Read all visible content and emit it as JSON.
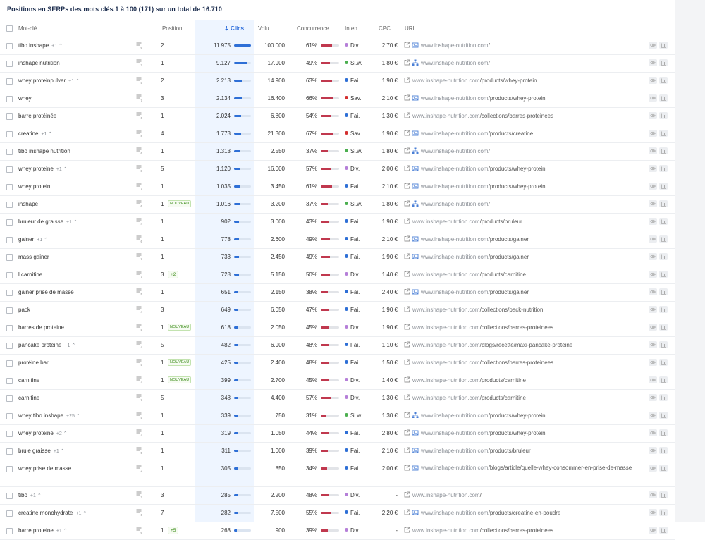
{
  "title": "Positions en SERPs des mots clés 1 à 100 (171) sur un total de 16.710",
  "columns": {
    "keyword": "Mot-clé",
    "position": "Position",
    "clicks": "Clics",
    "volume": "Volu...",
    "competition": "Concurrence",
    "intent": "Inten...",
    "cpc": "CPC",
    "url": "URL"
  },
  "colors": {
    "accent": "#2e6fd6",
    "competition_bar": "#c0384e",
    "new_tag": "#3c8d1a",
    "intent_div": "#b57fd8",
    "intent_fai": "#2e6fd6",
    "intent_siw": "#4caf50",
    "intent_sav": "#d32f2f"
  },
  "rows": [
    {
      "keyword": "tibo inshape",
      "delta": "+1",
      "position": "2",
      "tag": "",
      "clicks": "11.975",
      "clicks_pct": 1.0,
      "volume": "100.000",
      "competition": "61%",
      "comp_pct": 0.61,
      "intent": "Div.",
      "intent_color": "#b57fd8",
      "cpc": "2,70 €",
      "url_icon": "image-icon",
      "url_domain": "www.inshape-nutrition.com",
      "url_path": "/",
      "serp_num": "6"
    },
    {
      "keyword": "inshape nutrition",
      "delta": "",
      "position": "1",
      "tag": "",
      "clicks": "9.127",
      "clicks_pct": 0.76,
      "volume": "17.900",
      "competition": "49%",
      "comp_pct": 0.49,
      "intent": "Si.w.",
      "intent_color": "#4caf50",
      "cpc": "1,80 €",
      "url_icon": "sitelinks-icon",
      "url_domain": "www.inshape-nutrition.com",
      "url_path": "/",
      "serp_num": "7"
    },
    {
      "keyword": "whey proteinpulver",
      "delta": "+1",
      "position": "2",
      "tag": "",
      "clicks": "2.213",
      "clicks_pct": 0.45,
      "volume": "14.900",
      "competition": "63%",
      "comp_pct": 0.63,
      "intent": "Fai.",
      "intent_color": "#2e6fd6",
      "cpc": "1,90 €",
      "url_icon": "",
      "url_domain": "www.inshape-nutrition.com",
      "url_path": "/products/whey-protein",
      "serp_num": "5"
    },
    {
      "keyword": "whey",
      "delta": "",
      "position": "3",
      "tag": "",
      "clicks": "2.134",
      "clicks_pct": 0.44,
      "volume": "16.400",
      "competition": "66%",
      "comp_pct": 0.66,
      "intent": "Sav.",
      "intent_color": "#d32f2f",
      "cpc": "2,10 €",
      "url_icon": "image-icon",
      "url_domain": "www.inshape-nutrition.com",
      "url_path": "/products/whey-protein",
      "serp_num": "7"
    },
    {
      "keyword": "barre protéinée",
      "delta": "",
      "position": "1",
      "tag": "",
      "clicks": "2.024",
      "clicks_pct": 0.43,
      "volume": "6.800",
      "competition": "54%",
      "comp_pct": 0.54,
      "intent": "Fai.",
      "intent_color": "#2e6fd6",
      "cpc": "1,30 €",
      "url_icon": "",
      "url_domain": "www.inshape-nutrition.com",
      "url_path": "/collections/barres-proteinees",
      "serp_num": "6"
    },
    {
      "keyword": "creatine",
      "delta": "+1",
      "position": "4",
      "tag": "",
      "clicks": "1.773",
      "clicks_pct": 0.4,
      "volume": "21.300",
      "competition": "67%",
      "comp_pct": 0.67,
      "intent": "Sav.",
      "intent_color": "#d32f2f",
      "cpc": "1,90 €",
      "url_icon": "image-icon",
      "url_domain": "www.inshape-nutrition.com",
      "url_path": "/products/creatine",
      "serp_num": "8"
    },
    {
      "keyword": "tibo inshape nutrition",
      "delta": "",
      "position": "1",
      "tag": "",
      "clicks": "1.313",
      "clicks_pct": 0.36,
      "volume": "2.550",
      "competition": "37%",
      "comp_pct": 0.37,
      "intent": "Si.w.",
      "intent_color": "#4caf50",
      "cpc": "1,80 €",
      "url_icon": "sitelinks-icon",
      "url_domain": "www.inshape-nutrition.com",
      "url_path": "/",
      "serp_num": "6"
    },
    {
      "keyword": "whey proteine",
      "delta": "+1",
      "position": "5",
      "tag": "",
      "clicks": "1.120",
      "clicks_pct": 0.34,
      "volume": "16.000",
      "competition": "57%",
      "comp_pct": 0.57,
      "intent": "Div.",
      "intent_color": "#b57fd8",
      "cpc": "2,00 €",
      "url_icon": "image-icon",
      "url_domain": "www.inshape-nutrition.com",
      "url_path": "/products/whey-protein",
      "serp_num": "8"
    },
    {
      "keyword": "whey protein",
      "delta": "",
      "position": "1",
      "tag": "",
      "clicks": "1.035",
      "clicks_pct": 0.33,
      "volume": "3.450",
      "competition": "61%",
      "comp_pct": 0.61,
      "intent": "Fai.",
      "intent_color": "#2e6fd6",
      "cpc": "2,10 €",
      "url_icon": "image-icon",
      "url_domain": "www.inshape-nutrition.com",
      "url_path": "/products/whey-protein",
      "serp_num": "7"
    },
    {
      "keyword": "inshape",
      "delta": "",
      "position": "1",
      "tag": "NOUVEAU",
      "clicks": "1.016",
      "clicks_pct": 0.33,
      "volume": "3.200",
      "competition": "37%",
      "comp_pct": 0.37,
      "intent": "Si.w.",
      "intent_color": "#4caf50",
      "cpc": "1,80 €",
      "url_icon": "sitelinks-icon",
      "url_domain": "www.inshape-nutrition.com",
      "url_path": "/",
      "serp_num": "6"
    },
    {
      "keyword": "bruleur de graisse",
      "delta": "+1",
      "position": "1",
      "tag": "",
      "clicks": "902",
      "clicks_pct": 0.31,
      "volume": "3.000",
      "competition": "43%",
      "comp_pct": 0.43,
      "intent": "Fai.",
      "intent_color": "#2e6fd6",
      "cpc": "1,90 €",
      "url_icon": "",
      "url_domain": "www.inshape-nutrition.com",
      "url_path": "/products/bruleur",
      "serp_num": "4"
    },
    {
      "keyword": "gainer",
      "delta": "+1",
      "position": "1",
      "tag": "",
      "clicks": "778",
      "clicks_pct": 0.29,
      "volume": "2.600",
      "competition": "49%",
      "comp_pct": 0.49,
      "intent": "Fai.",
      "intent_color": "#2e6fd6",
      "cpc": "2,10 €",
      "url_icon": "image-icon",
      "url_domain": "www.inshape-nutrition.com",
      "url_path": "/products/gainer",
      "serp_num": "6"
    },
    {
      "keyword": "mass gainer",
      "delta": "",
      "position": "1",
      "tag": "",
      "clicks": "733",
      "clicks_pct": 0.28,
      "volume": "2.450",
      "competition": "49%",
      "comp_pct": 0.49,
      "intent": "Fai.",
      "intent_color": "#2e6fd6",
      "cpc": "1,90 €",
      "url_icon": "image-icon",
      "url_domain": "www.inshape-nutrition.com",
      "url_path": "/products/gainer",
      "serp_num": "7"
    },
    {
      "keyword": "l carnitine",
      "delta": "",
      "position": "3",
      "tag": "+2",
      "clicks": "728",
      "clicks_pct": 0.28,
      "volume": "5.150",
      "competition": "50%",
      "comp_pct": 0.5,
      "intent": "Div.",
      "intent_color": "#b57fd8",
      "cpc": "1,40 €",
      "url_icon": "",
      "url_domain": "www.inshape-nutrition.com",
      "url_path": "/products/carnitine",
      "serp_num": "7"
    },
    {
      "keyword": "gainer prise de masse",
      "delta": "",
      "position": "1",
      "tag": "",
      "clicks": "651",
      "clicks_pct": 0.27,
      "volume": "2.150",
      "competition": "38%",
      "comp_pct": 0.38,
      "intent": "Fai.",
      "intent_color": "#2e6fd6",
      "cpc": "2,40 €",
      "url_icon": "image-icon",
      "url_domain": "www.inshape-nutrition.com",
      "url_path": "/products/gainer",
      "serp_num": "5"
    },
    {
      "keyword": "pack",
      "delta": "",
      "position": "3",
      "tag": "",
      "clicks": "649",
      "clicks_pct": 0.27,
      "volume": "6.050",
      "competition": "47%",
      "comp_pct": 0.47,
      "intent": "Fai.",
      "intent_color": "#2e6fd6",
      "cpc": "1,90 €",
      "url_icon": "",
      "url_domain": "www.inshape-nutrition.com",
      "url_path": "/collections/pack-nutrition",
      "serp_num": "4"
    },
    {
      "keyword": "barres de proteine",
      "delta": "",
      "position": "1",
      "tag": "NOUVEAU",
      "clicks": "618",
      "clicks_pct": 0.26,
      "volume": "2.050",
      "competition": "45%",
      "comp_pct": 0.45,
      "intent": "Div.",
      "intent_color": "#b57fd8",
      "cpc": "1,90 €",
      "url_icon": "",
      "url_domain": "www.inshape-nutrition.com",
      "url_path": "/collections/barres-proteinees",
      "serp_num": "5"
    },
    {
      "keyword": "pancake proteine",
      "delta": "+1",
      "position": "5",
      "tag": "",
      "clicks": "482",
      "clicks_pct": 0.24,
      "volume": "6.900",
      "competition": "48%",
      "comp_pct": 0.48,
      "intent": "Fai.",
      "intent_color": "#2e6fd6",
      "cpc": "1,10 €",
      "url_icon": "",
      "url_domain": "www.inshape-nutrition.com",
      "url_path": "/blogs/recette/maxi-pancake-proteine",
      "serp_num": "4"
    },
    {
      "keyword": "protéine bar",
      "delta": "",
      "position": "1",
      "tag": "NOUVEAU",
      "clicks": "425",
      "clicks_pct": 0.23,
      "volume": "2.400",
      "competition": "48%",
      "comp_pct": 0.48,
      "intent": "Fai.",
      "intent_color": "#2e6fd6",
      "cpc": "1,50 €",
      "url_icon": "",
      "url_domain": "www.inshape-nutrition.com",
      "url_path": "/collections/barres-proteinees",
      "serp_num": "5"
    },
    {
      "keyword": "carnitine l",
      "delta": "",
      "position": "1",
      "tag": "NOUVEAU",
      "clicks": "399",
      "clicks_pct": 0.22,
      "volume": "2.700",
      "competition": "45%",
      "comp_pct": 0.45,
      "intent": "Div.",
      "intent_color": "#b57fd8",
      "cpc": "1,40 €",
      "url_icon": "",
      "url_domain": "www.inshape-nutrition.com",
      "url_path": "/products/carnitine",
      "serp_num": "4"
    },
    {
      "keyword": "carnitine",
      "delta": "",
      "position": "5",
      "tag": "",
      "clicks": "348",
      "clicks_pct": 0.21,
      "volume": "4.400",
      "competition": "57%",
      "comp_pct": 0.57,
      "intent": "Div.",
      "intent_color": "#b57fd8",
      "cpc": "1,30 €",
      "url_icon": "",
      "url_domain": "www.inshape-nutrition.com",
      "url_path": "/products/carnitine",
      "serp_num": "7"
    },
    {
      "keyword": "whey tibo inshape",
      "delta": "+25",
      "position": "1",
      "tag": "",
      "clicks": "339",
      "clicks_pct": 0.21,
      "volume": "750",
      "competition": "31%",
      "comp_pct": 0.31,
      "intent": "Si.w.",
      "intent_color": "#4caf50",
      "cpc": "1,30 €",
      "url_icon": "sitelinks-icon",
      "url_domain": "www.inshape-nutrition.com",
      "url_path": "/products/whey-protein",
      "serp_num": "5"
    },
    {
      "keyword": "whey protéine",
      "delta": "+2",
      "position": "1",
      "tag": "",
      "clicks": "319",
      "clicks_pct": 0.2,
      "volume": "1.050",
      "competition": "44%",
      "comp_pct": 0.44,
      "intent": "Fai.",
      "intent_color": "#2e6fd6",
      "cpc": "2,80 €",
      "url_icon": "image-icon",
      "url_domain": "www.inshape-nutrition.com",
      "url_path": "/products/whey-protein",
      "serp_num": "4"
    },
    {
      "keyword": "brule graisse",
      "delta": "+1",
      "position": "1",
      "tag": "",
      "clicks": "311",
      "clicks_pct": 0.2,
      "volume": "1.000",
      "competition": "39%",
      "comp_pct": 0.39,
      "intent": "Fai.",
      "intent_color": "#2e6fd6",
      "cpc": "2,10 €",
      "url_icon": "image-icon",
      "url_domain": "www.inshape-nutrition.com",
      "url_path": "/products/bruleur",
      "serp_num": "5"
    },
    {
      "keyword": "whey prise de masse",
      "delta": "",
      "position": "1",
      "tag": "",
      "clicks": "305",
      "clicks_pct": 0.2,
      "volume": "850",
      "competition": "34%",
      "comp_pct": 0.34,
      "intent": "Fai.",
      "intent_color": "#2e6fd6",
      "cpc": "2,00 €",
      "url_icon": "image-icon",
      "url_domain": "www.inshape-nutrition.com",
      "url_path": "/blogs/article/quelle-whey-consommer-en-prise-de-masse",
      "serp_num": "3",
      "tall": true
    },
    {
      "keyword": "tibo",
      "delta": "+1",
      "position": "3",
      "tag": "",
      "clicks": "285",
      "clicks_pct": 0.19,
      "volume": "2.200",
      "competition": "48%",
      "comp_pct": 0.48,
      "intent": "Div.",
      "intent_color": "#b57fd8",
      "cpc": "-",
      "url_icon": "",
      "url_domain": "www.inshape-nutrition.com",
      "url_path": "/",
      "serp_num": "7"
    },
    {
      "keyword": "creatine monohydrate",
      "delta": "+1",
      "position": "7",
      "tag": "",
      "clicks": "282",
      "clicks_pct": 0.19,
      "volume": "7.500",
      "competition": "55%",
      "comp_pct": 0.55,
      "intent": "Fai.",
      "intent_color": "#2e6fd6",
      "cpc": "2,20 €",
      "url_icon": "image-icon",
      "url_domain": "www.inshape-nutrition.com",
      "url_path": "/products/creatine-en-poudre",
      "serp_num": "6"
    },
    {
      "keyword": "barre proteine",
      "delta": "+1",
      "position": "1",
      "tag": "+5",
      "clicks": "268",
      "clicks_pct": 0.18,
      "volume": "900",
      "competition": "39%",
      "comp_pct": 0.39,
      "intent": "Div.",
      "intent_color": "#b57fd8",
      "cpc": "-",
      "url_icon": "",
      "url_domain": "www.inshape-nutrition.com",
      "url_path": "/collections/barres-proteinees",
      "serp_num": "6"
    }
  ]
}
